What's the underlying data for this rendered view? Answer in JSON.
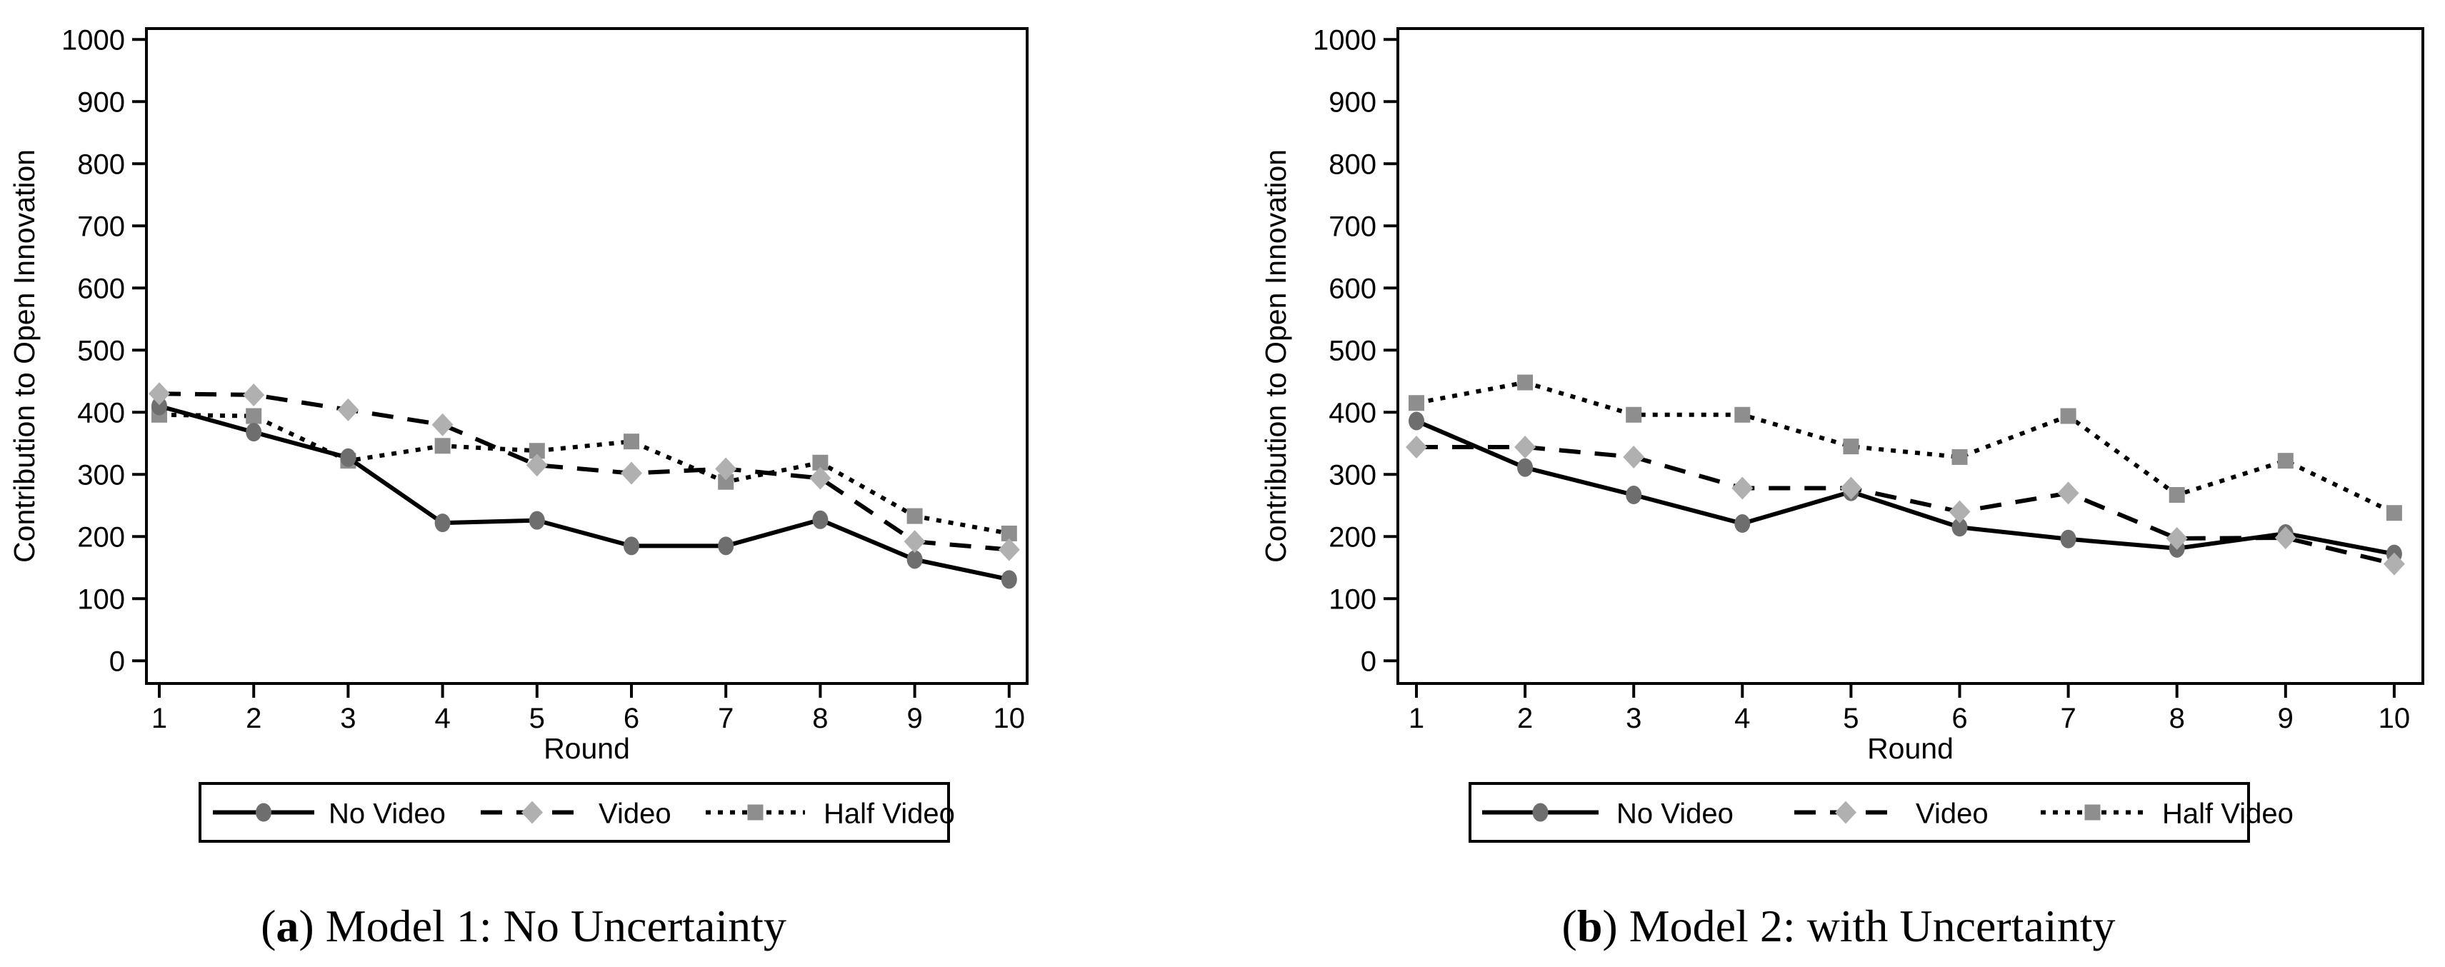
{
  "figure": {
    "y_axis_title": "Contribution to Open Innovation",
    "x_axis_title": "Round",
    "y_ticks": [
      0,
      100,
      200,
      300,
      400,
      500,
      600,
      700,
      800,
      900,
      1000
    ],
    "x_ticks": [
      1,
      2,
      3,
      4,
      5,
      6,
      7,
      8,
      9,
      10
    ],
    "colors": {
      "no_video_marker": "#6e6e6e",
      "video_marker": "#b0b0b0",
      "half_video_marker": "#8e8e8e",
      "line": "#000000",
      "background": "#ffffff",
      "text": "#000000"
    }
  },
  "legend": {
    "entries": [
      {
        "label": "No Video",
        "marker": "circle",
        "line_style": "solid"
      },
      {
        "label": "Video",
        "marker": "diamond",
        "line_style": "dashed"
      },
      {
        "label": "Half Video",
        "marker": "square",
        "line_style": "dotted"
      }
    ]
  },
  "captions": [
    {
      "open_paren": "(",
      "letter": "a",
      "close_paren": ")",
      "text": " Model 1: No Uncertainty"
    },
    {
      "open_paren": "(",
      "letter": "b",
      "close_paren": ")",
      "text": " Model 2: with Uncertainty"
    }
  ],
  "chart_data": [
    {
      "type": "line",
      "title": "(a) Model 1: No Uncertainty",
      "xlabel": "Round",
      "ylabel": "Contribution to Open Innovation",
      "x": [
        1,
        2,
        3,
        4,
        5,
        6,
        7,
        8,
        9,
        10
      ],
      "ylim": [
        0,
        1000
      ],
      "grid": false,
      "legend_position": "bottom",
      "series": [
        {
          "name": "No Video",
          "marker": "circle",
          "line_style": "solid",
          "values": [
            410,
            368,
            327,
            222,
            226,
            185,
            185,
            227,
            163,
            131
          ]
        },
        {
          "name": "Video",
          "marker": "diamond",
          "line_style": "dashed",
          "values": [
            430,
            428,
            404,
            380,
            315,
            302,
            309,
            294,
            192,
            179
          ]
        },
        {
          "name": "Half Video",
          "marker": "square",
          "line_style": "dotted",
          "values": [
            396,
            394,
            322,
            346,
            338,
            353,
            288,
            319,
            233,
            205
          ]
        }
      ]
    },
    {
      "type": "line",
      "title": "(b) Model 2: with Uncertainty",
      "xlabel": "Round",
      "ylabel": "Contribution to Open Innovation",
      "x": [
        1,
        2,
        3,
        4,
        5,
        6,
        7,
        8,
        9,
        10
      ],
      "ylim": [
        0,
        1000
      ],
      "grid": false,
      "legend_position": "bottom",
      "series": [
        {
          "name": "No Video",
          "marker": "circle",
          "line_style": "solid",
          "values": [
            386,
            311,
            267,
            221,
            272,
            215,
            196,
            181,
            205,
            172
          ]
        },
        {
          "name": "Video",
          "marker": "diamond",
          "line_style": "dashed",
          "values": [
            344,
            344,
            328,
            278,
            278,
            240,
            270,
            197,
            198,
            156
          ]
        },
        {
          "name": "Half Video",
          "marker": "square",
          "line_style": "dotted",
          "values": [
            415,
            448,
            396,
            396,
            345,
            328,
            394,
            267,
            322,
            238
          ]
        }
      ]
    }
  ]
}
